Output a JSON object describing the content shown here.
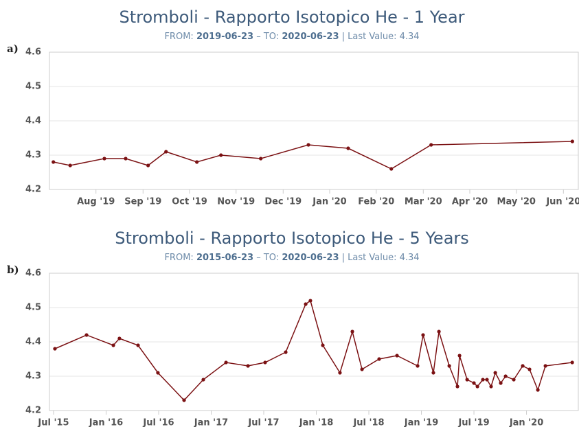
{
  "chart_data": [
    {
      "type": "line",
      "panel_label": "a)",
      "title": "Stromboli - Rapporto Isotopico He - 1 Year",
      "subtitle": {
        "from_label": "FROM:",
        "from": "2019-06-23",
        "to_label": "– TO:",
        "to": "2020-06-23",
        "last_value_label": "| Last Value: 4.34"
      },
      "x": [
        2019.507,
        2019.537,
        2019.598,
        2019.636,
        2019.676,
        2019.708,
        2019.763,
        2019.806,
        2019.877,
        2019.962,
        2020.033,
        2020.11,
        2020.181,
        2020.433
      ],
      "series": [
        {
          "name": "He",
          "color": "#7b1113",
          "values": [
            4.28,
            4.27,
            4.29,
            4.29,
            4.27,
            4.31,
            4.28,
            4.3,
            4.29,
            4.33,
            4.32,
            4.26,
            4.33,
            4.34
          ]
        }
      ],
      "xlim": [
        2019.5,
        2020.4436
      ],
      "xticks": [
        {
          "value": 2019.583,
          "label": "Aug '19"
        },
        {
          "value": 2019.667,
          "label": "Sep '19"
        },
        {
          "value": 2019.75,
          "label": "Oct '19"
        },
        {
          "value": 2019.833,
          "label": "Nov '19"
        },
        {
          "value": 2019.917,
          "label": "Dec '19"
        },
        {
          "value": 2020.0,
          "label": "Jan '20"
        },
        {
          "value": 2020.083,
          "label": "Feb '20"
        },
        {
          "value": 2020.167,
          "label": "Mar '20"
        },
        {
          "value": 2020.25,
          "label": "Apr '20"
        },
        {
          "value": 2020.333,
          "label": "May '20"
        },
        {
          "value": 2020.417,
          "label": "Jun '20"
        }
      ],
      "ylim": [
        4.2,
        4.6
      ],
      "yticks": [
        4.2,
        4.3,
        4.4,
        4.5,
        4.6
      ],
      "grid": true
    },
    {
      "type": "line",
      "panel_label": "b)",
      "title": "Stromboli - Rapporto Isotopico He - 5 Years",
      "subtitle": {
        "from_label": "FROM:",
        "from": "2015-06-23",
        "to_label": "– TO:",
        "to": "2020-06-23",
        "last_value_label": "| Last Value: 4.34"
      },
      "x": [
        2015.513,
        2015.814,
        2016.069,
        2016.127,
        2016.304,
        2016.493,
        2016.742,
        2016.925,
        2017.141,
        2017.35,
        2017.513,
        2017.709,
        2017.899,
        2017.944,
        2018.062,
        2018.225,
        2018.343,
        2018.435,
        2018.598,
        2018.768,
        2018.964,
        2019.016,
        2019.114,
        2019.167,
        2019.265,
        2019.343,
        2019.363,
        2019.435,
        2019.5,
        2019.533,
        2019.585,
        2019.624,
        2019.663,
        2019.703,
        2019.755,
        2019.801,
        2019.879,
        2019.964,
        2020.029,
        2020.108,
        2020.18,
        2020.435
      ],
      "series": [
        {
          "name": "He",
          "color": "#7b1113",
          "values": [
            4.38,
            4.42,
            4.39,
            4.41,
            4.39,
            4.31,
            4.23,
            4.29,
            4.34,
            4.33,
            4.34,
            4.37,
            4.51,
            4.52,
            4.39,
            4.31,
            4.43,
            4.32,
            4.35,
            4.36,
            4.33,
            4.42,
            4.31,
            4.43,
            4.33,
            4.27,
            4.36,
            4.29,
            4.28,
            4.27,
            4.29,
            4.29,
            4.27,
            4.31,
            4.28,
            4.3,
            4.29,
            4.33,
            4.32,
            4.26,
            4.33,
            4.34
          ]
        }
      ],
      "xlim": [
        2015.461,
        2020.493
      ],
      "xticks": [
        {
          "value": 2015.5,
          "label": "Jul '15"
        },
        {
          "value": 2016.0,
          "label": "Jan '16"
        },
        {
          "value": 2016.5,
          "label": "Jul '16"
        },
        {
          "value": 2017.0,
          "label": "Jan '17"
        },
        {
          "value": 2017.5,
          "label": "Jul '17"
        },
        {
          "value": 2018.0,
          "label": "Jan '18"
        },
        {
          "value": 2018.5,
          "label": "Jul '18"
        },
        {
          "value": 2019.0,
          "label": "Jan '19"
        },
        {
          "value": 2019.5,
          "label": "Jul '19"
        },
        {
          "value": 2020.0,
          "label": "Jan '20"
        }
      ],
      "ylim": [
        4.2,
        4.6
      ],
      "yticks": [
        4.2,
        4.3,
        4.4,
        4.5,
        4.6
      ],
      "grid": true
    }
  ]
}
